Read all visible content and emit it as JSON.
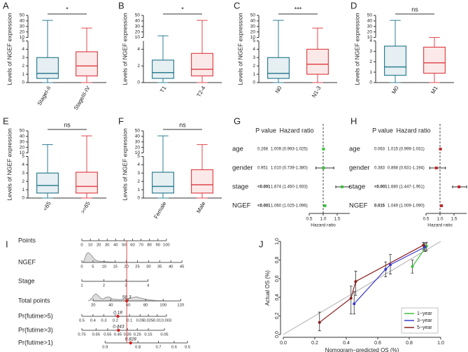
{
  "chart_data": [
    {
      "type": "box",
      "panel": "A",
      "ylabel": "Levels of NGEF expression",
      "categories": [
        "StageI-II",
        "StageIII-IV"
      ],
      "colors": [
        "#2f7f93",
        "#e0474c"
      ],
      "q1": [
        0.5,
        0.8
      ],
      "median": [
        1.1,
        2.0
      ],
      "q3": [
        3.0,
        3.7
      ],
      "whisker_low": [
        0,
        0
      ],
      "whisker_high": [
        41,
        27
      ],
      "ylim": [
        0,
        50
      ],
      "ybreak": [
        5,
        10
      ],
      "yticks": [
        0,
        1,
        2,
        3,
        4,
        5,
        10,
        20,
        30,
        40,
        50
      ],
      "significance": "*"
    },
    {
      "type": "box",
      "panel": "B",
      "ylabel": "Levels of NGEF expression",
      "categories": [
        "T1",
        "T2-4"
      ],
      "colors": [
        "#2f7f93",
        "#e0474c"
      ],
      "q1": [
        0.5,
        0.8
      ],
      "median": [
        1.2,
        1.6
      ],
      "q3": [
        2.7,
        3.5
      ],
      "whisker_low": [
        0,
        0
      ],
      "whisker_high": [
        13,
        41
      ],
      "ylim": [
        0,
        50
      ],
      "ybreak": [
        5,
        10
      ],
      "yticks": [
        0,
        2,
        4,
        10,
        20,
        30,
        40,
        50
      ],
      "significance": "*"
    },
    {
      "type": "box",
      "panel": "C",
      "ylabel": "Levels of NGEF expression",
      "categories": [
        "N0",
        "N1-3"
      ],
      "colors": [
        "#2f7f93",
        "#e0474c"
      ],
      "q1": [
        0.5,
        1.0
      ],
      "median": [
        1.1,
        2.2
      ],
      "q3": [
        3.0,
        4.0
      ],
      "whisker_low": [
        0,
        0
      ],
      "whisker_high": [
        41,
        27
      ],
      "ylim": [
        0,
        50
      ],
      "ybreak": [
        5,
        10
      ],
      "yticks": [
        0,
        1,
        2,
        3,
        4,
        5,
        10,
        20,
        30,
        40,
        50
      ],
      "significance": "***"
    },
    {
      "type": "box",
      "panel": "D",
      "ylabel": "Levels of NGEF expression",
      "categories": [
        "M0",
        "M1"
      ],
      "colors": [
        "#2f7f93",
        "#e0474c"
      ],
      "q1": [
        0.7,
        0.9
      ],
      "median": [
        1.5,
        1.9
      ],
      "q3": [
        3.5,
        3.4
      ],
      "whisker_low": [
        0,
        0
      ],
      "whisker_high": [
        41,
        10
      ],
      "ylim": [
        0,
        50
      ],
      "ybreak": [
        4,
        10
      ],
      "yticks": [
        0,
        1,
        2,
        3,
        4,
        10,
        20,
        30,
        40,
        50
      ],
      "significance": "ns"
    },
    {
      "type": "box",
      "panel": "E",
      "ylabel": "Levels of NGEF expression",
      "categories": [
        "<65",
        ">=65"
      ],
      "colors": [
        "#2f7f93",
        "#e0474c"
      ],
      "q1": [
        0.6,
        0.6
      ],
      "median": [
        1.5,
        1.4
      ],
      "q3": [
        3.0,
        3.1
      ],
      "whisker_low": [
        0,
        0
      ],
      "whisker_high": [
        25,
        41
      ],
      "ylim": [
        0,
        50
      ],
      "ybreak": [
        5,
        10
      ],
      "yticks": [
        0,
        1,
        2,
        3,
        4,
        5,
        10,
        20,
        30,
        40,
        50
      ],
      "significance": "ns"
    },
    {
      "type": "box",
      "panel": "F",
      "ylabel": "Levels of NGEF expression",
      "categories": [
        "Female",
        "Male"
      ],
      "colors": [
        "#2f7f93",
        "#e0474c"
      ],
      "q1": [
        0.6,
        0.6
      ],
      "median": [
        1.4,
        1.6
      ],
      "q3": [
        3.1,
        3.4
      ],
      "whisker_low": [
        0,
        0
      ],
      "whisker_high": [
        41,
        25
      ],
      "ylim": [
        0,
        50
      ],
      "ybreak": [
        5,
        10
      ],
      "yticks": [
        0,
        1,
        2,
        3,
        4,
        5,
        10,
        20,
        30,
        40,
        50
      ],
      "significance": "ns"
    },
    {
      "type": "forest",
      "panel": "G",
      "columns": [
        "P value",
        "Hazard ratio"
      ],
      "categories": [
        "age",
        "gender",
        "stage",
        "NGEF"
      ],
      "p_values": [
        0.268,
        0.951,
        "<0.001",
        "<0.001"
      ],
      "values": [
        1.009,
        1.01,
        1.674,
        1.06
      ],
      "lower": [
        0.993,
        0.739,
        1.45,
        1.025
      ],
      "upper": [
        1.025,
        1.38,
        1.933,
        1.096
      ],
      "value_labels": [
        "1.009 (0.993-1.025)",
        "1.010 (0.739-1.380)",
        "1.674 (1.450-1.933)",
        "1.060 (1.025-1.096)"
      ],
      "color": "#3cc43c",
      "xlabel": "Hazard ratio",
      "xlim": [
        0.5,
        1.95
      ],
      "xticks": [
        0.5,
        {
          "value": 1,
          "label": "1.0"
        },
        1.5
      ],
      "reference": 1
    },
    {
      "type": "forest",
      "panel": "H",
      "columns": [
        "P value",
        "Hazard ratio"
      ],
      "categories": [
        "age",
        "gender",
        "stage",
        "NGEF"
      ],
      "p_values": [
        0.063,
        0.383,
        "<0.001",
        0.015
      ],
      "values": [
        1.015,
        0.868,
        1.68,
        1.049
      ],
      "lower": [
        0.999,
        0.631,
        1.447,
        1.009
      ],
      "upper": [
        1.031,
        1.194,
        1.951,
        1.09
      ],
      "value_labels": [
        "1.015 (0.999-1.031)",
        "0.868 (0.631-1.194)",
        "1.680 (1.447-1.951)",
        "1.049 (1.009-1.090)"
      ],
      "color": "#c0282d",
      "xlabel": "Hazard ratio",
      "xlim": [
        0.5,
        1.95
      ],
      "xticks": [
        0.5,
        {
          "value": 1,
          "label": "1.0"
        },
        1.5
      ],
      "reference": 1
    },
    {
      "type": "nomogram",
      "panel": "I",
      "scales": [
        {
          "name": "Points",
          "xlim": [
            0,
            120
          ],
          "ticks": [
            0,
            10,
            20,
            30,
            40,
            50,
            60,
            70,
            80,
            90,
            100
          ]
        },
        {
          "name": "NGEF",
          "xlim": [
            0,
            45.6
          ],
          "ticks": [
            0,
            5,
            10,
            15,
            20,
            25,
            30,
            35,
            40,
            45
          ]
        },
        {
          "name": "Stage",
          "xlim": [
            1,
            5.6
          ],
          "ticks": [
            1,
            2,
            3,
            4
          ]
        },
        {
          "name": "Total points",
          "xlim": [
            7,
            123
          ],
          "ticks": [
            20,
            40,
            60,
            80,
            100,
            120
          ],
          "prediction": 58.3
        },
        {
          "name": "Pr(futime>5)",
          "scale": "cloglog",
          "xlim": [
            0.5,
            0.00014
          ],
          "ticks": [
            0.5,
            0.4,
            0.3,
            0.2,
            0.1,
            0.05,
            0.025,
            0.01,
            0.003
          ],
          "prediction": 0.18
        },
        {
          "name": "Pr(futime>3)",
          "scale": "cloglog",
          "xlim": [
            0.75,
            0.006
          ],
          "ticks": [
            0.75,
            0.65,
            0.55,
            0.45,
            0.35,
            0.25,
            0.15,
            0.05
          ],
          "prediction": 0.443
        },
        {
          "name": "Pr(futime>1)",
          "scale": "cloglog",
          "xlim": [
            0.94,
            0.533
          ],
          "ticks": [
            0.9,
            0.8,
            0.7,
            0.6,
            0.5
          ],
          "prediction": 0.828
        }
      ]
    },
    {
      "type": "calibration",
      "panel": "J",
      "xlabel": "Nomogram−predicted OS (%)",
      "ylabel": "Actual OS (%)",
      "xlim": [
        0,
        1
      ],
      "ylim": [
        0,
        1
      ],
      "xticks": [
        {
          "value": 0,
          "label": "0.0"
        },
        0.2,
        0.4,
        0.6,
        0.8,
        {
          "value": 1,
          "label": "1.0"
        }
      ],
      "yticks": [
        {
          "value": 0,
          "label": "0.0"
        },
        0.2,
        0.4,
        0.6,
        0.8,
        {
          "value": 1,
          "label": "1.0"
        }
      ],
      "legend": "bottom-right",
      "series": [
        {
          "name": "1−year",
          "color": "#3cbf3c",
          "x": [
            0.82,
            0.91
          ],
          "values": [
            0.73,
            0.95
          ],
          "lower": [
            0.66,
            0.9
          ],
          "upper": [
            0.8,
            0.99
          ]
        },
        {
          "name": "3−year",
          "color": "#3a3acc",
          "x": [
            0.45,
            0.65,
            0.68,
            0.9
          ],
          "values": [
            0.33,
            0.7,
            0.75,
            0.94
          ],
          "lower": [
            0.22,
            0.62,
            0.65,
            0.89
          ],
          "upper": [
            0.46,
            0.78,
            0.86,
            0.98
          ]
        },
        {
          "name": "5−year",
          "color": "#8b1c1c",
          "x": [
            0.23,
            0.43,
            0.46,
            0.89
          ],
          "values": [
            0.13,
            0.39,
            0.57,
            0.96
          ],
          "lower": [
            0.04,
            0.22,
            0.42,
            0.91
          ],
          "upper": [
            0.24,
            0.52,
            0.68,
            0.99
          ]
        }
      ]
    }
  ]
}
